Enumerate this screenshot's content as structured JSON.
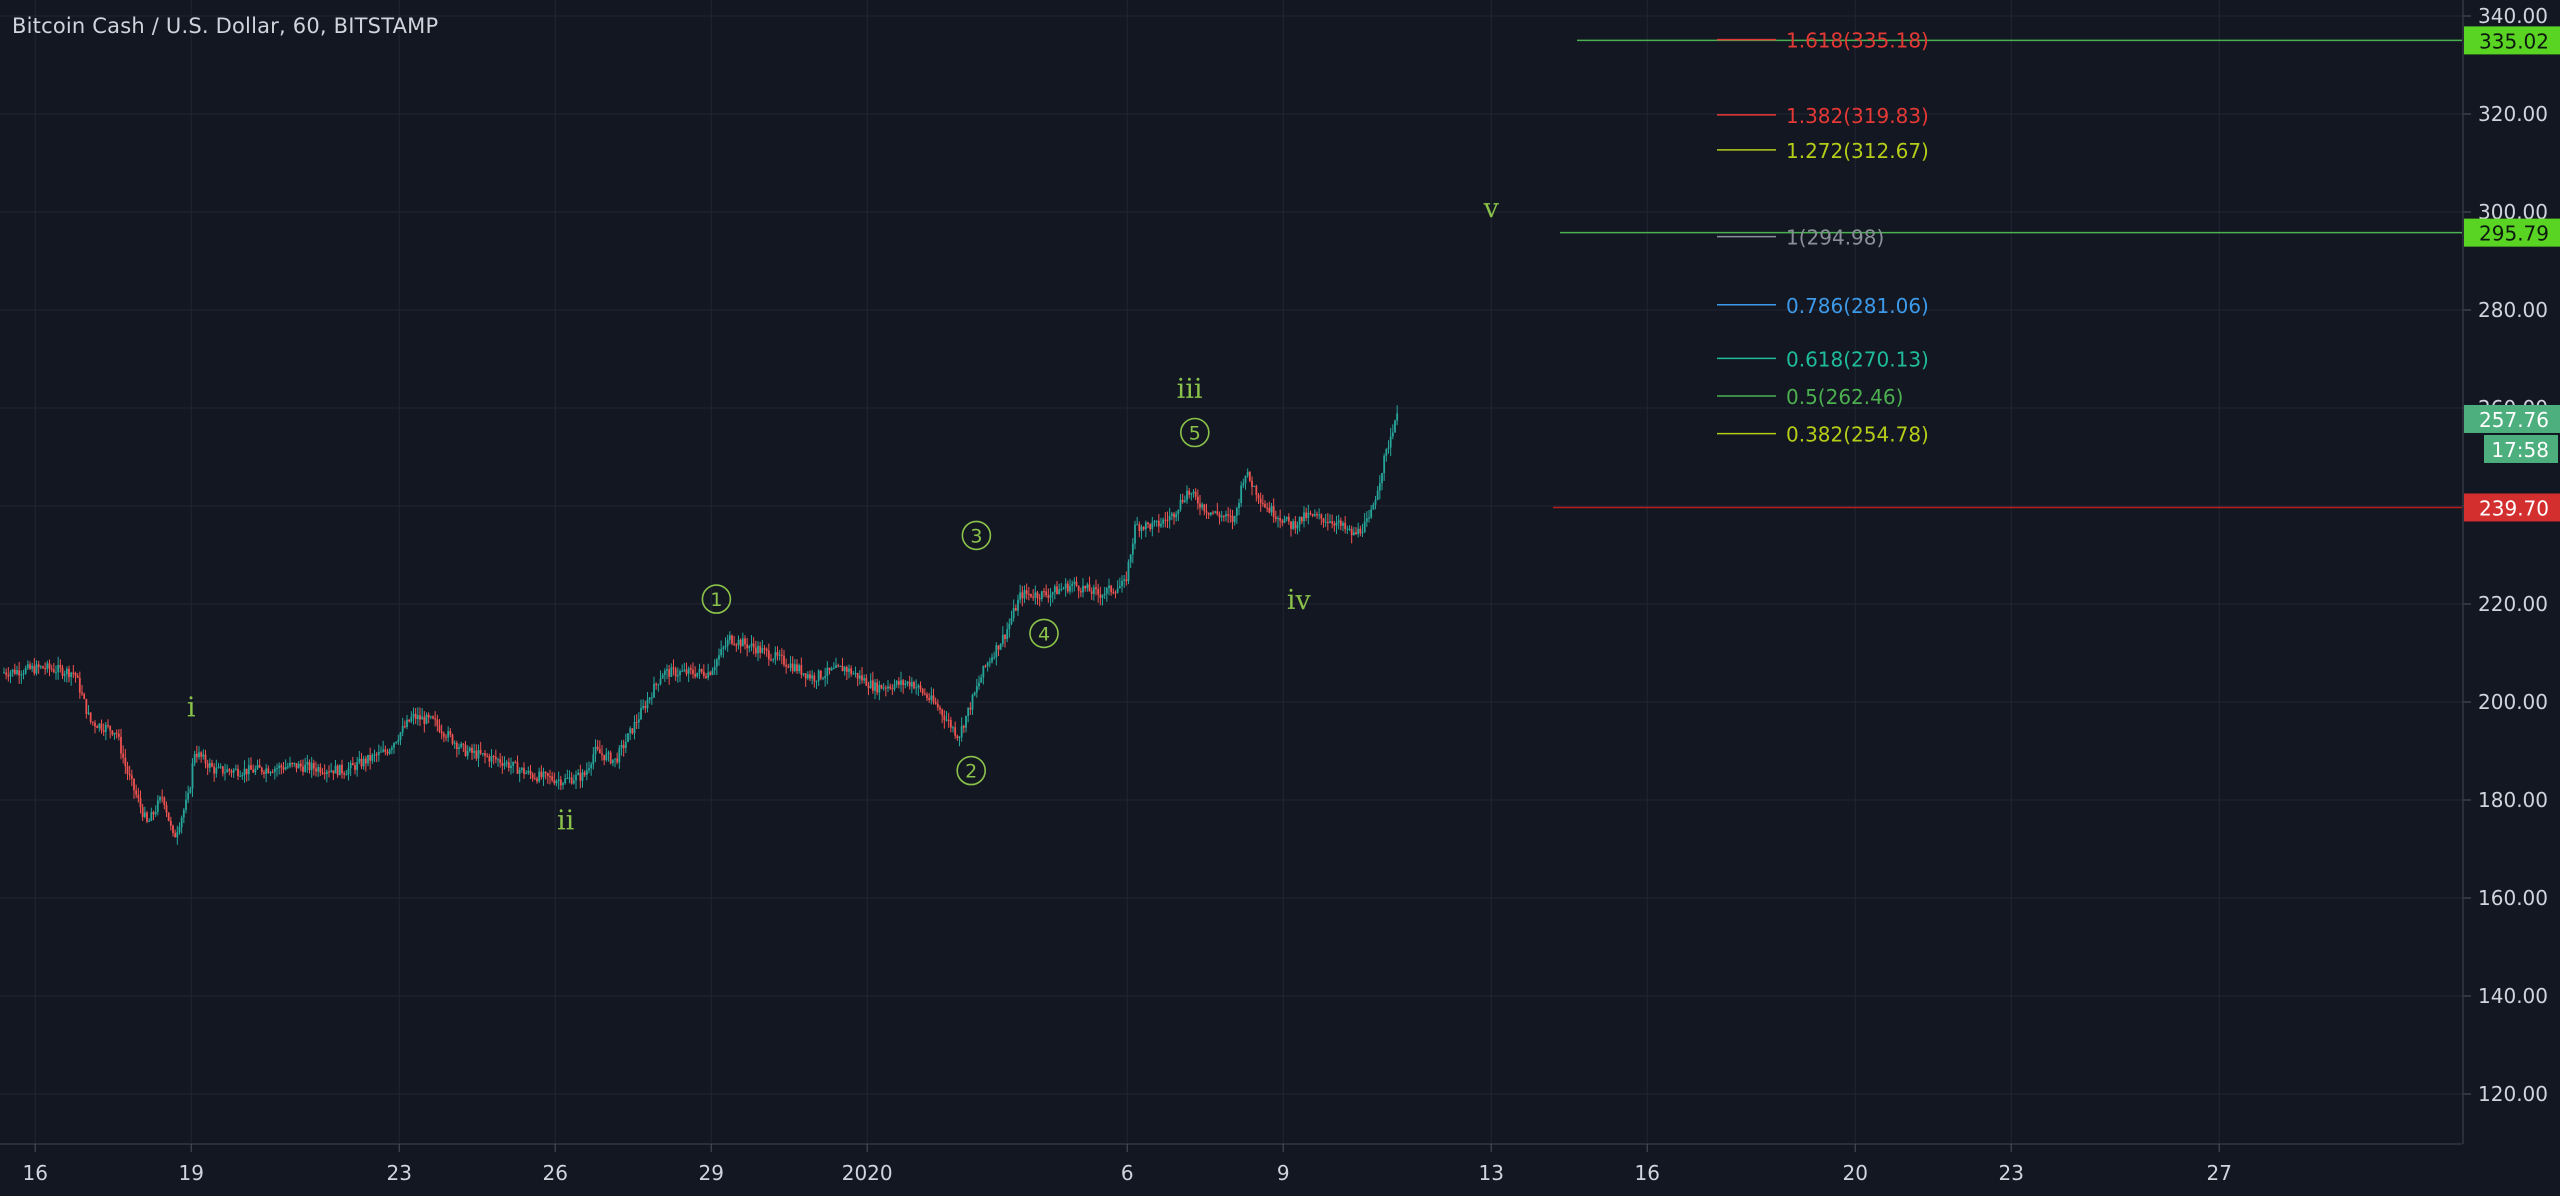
{
  "header": {
    "symbol_title": "Bitcoin Cash / U.S. Dollar, 60, BITSTAMP"
  },
  "colors": {
    "background": "#131722",
    "grid": "#222634",
    "axis_text": "#d1d4dc",
    "candle_up": "#26a69a",
    "candle_down": "#ef5350",
    "wave_label": "#8bc34a",
    "target_line": "#4caf50",
    "target_badge": "#59d423",
    "support_line": "#b71c1c",
    "support_badge": "#d32f2f",
    "current_badge": "#4caf7d"
  },
  "chart_data": {
    "type": "candlestick",
    "title": "Bitcoin Cash / U.S. Dollar, 60, BITSTAMP",
    "y_axis": {
      "range": [
        110,
        341
      ],
      "ticks": [
        120,
        140,
        160,
        180,
        200,
        220,
        240,
        260,
        280,
        300,
        320,
        340
      ],
      "tick_labels": [
        "120.00",
        "140.00",
        "160.00",
        "180.00",
        "200.00",
        "220.00",
        "240.00",
        "260.00",
        "280.00",
        "300.00",
        "320.00",
        "340.00"
      ]
    },
    "x_axis": {
      "range_days": [
        15.4,
        43.3
      ],
      "ticks": [
        {
          "day": 16,
          "label": "16"
        },
        {
          "day": 19,
          "label": "19"
        },
        {
          "day": 23,
          "label": "23"
        },
        {
          "day": 26,
          "label": "26"
        },
        {
          "day": 29,
          "label": "29"
        },
        {
          "day": 32,
          "label": "2020"
        },
        {
          "day": 37,
          "label": "6"
        },
        {
          "day": 40,
          "label": "9"
        },
        {
          "day": 44,
          "label": "13"
        },
        {
          "day": 47,
          "label": "16"
        },
        {
          "day": 51,
          "label": "20"
        },
        {
          "day": 54,
          "label": "23"
        },
        {
          "day": 58,
          "label": "27"
        }
      ]
    },
    "price_path": [
      [
        15.4,
        206
      ],
      [
        16.2,
        207
      ],
      [
        16.8,
        206
      ],
      [
        17.1,
        196
      ],
      [
        17.6,
        194
      ],
      [
        17.8,
        186
      ],
      [
        18.2,
        175
      ],
      [
        18.5,
        181
      ],
      [
        18.7,
        172
      ],
      [
        19.0,
        181
      ],
      [
        19.1,
        190
      ],
      [
        19.5,
        186
      ],
      [
        20.2,
        186
      ],
      [
        21.0,
        187
      ],
      [
        22.0,
        186
      ],
      [
        22.8,
        190
      ],
      [
        23.3,
        197
      ],
      [
        23.7,
        196
      ],
      [
        24.3,
        190
      ],
      [
        25.0,
        188
      ],
      [
        25.6,
        185
      ],
      [
        26.2,
        184
      ],
      [
        26.6,
        185
      ],
      [
        26.8,
        190
      ],
      [
        27.2,
        188
      ],
      [
        27.5,
        194
      ],
      [
        27.8,
        200
      ],
      [
        28.1,
        206
      ],
      [
        28.5,
        206
      ],
      [
        29.0,
        206
      ],
      [
        29.4,
        213
      ],
      [
        29.9,
        211
      ],
      [
        30.5,
        208
      ],
      [
        31.0,
        205
      ],
      [
        31.6,
        207
      ],
      [
        32.2,
        203
      ],
      [
        32.9,
        204
      ],
      [
        33.4,
        199
      ],
      [
        33.8,
        193
      ],
      [
        34.3,
        207
      ],
      [
        34.7,
        214
      ],
      [
        35.0,
        222
      ],
      [
        35.5,
        222
      ],
      [
        36.0,
        224
      ],
      [
        36.5,
        222
      ],
      [
        37.0,
        224
      ],
      [
        37.2,
        236
      ],
      [
        37.6,
        236
      ],
      [
        37.9,
        238
      ],
      [
        38.2,
        243
      ],
      [
        38.6,
        239
      ],
      [
        39.1,
        237
      ],
      [
        39.3,
        247
      ],
      [
        39.7,
        240
      ],
      [
        40.2,
        236
      ],
      [
        40.5,
        238
      ],
      [
        41.0,
        237
      ],
      [
        41.4,
        234
      ],
      [
        41.7,
        237
      ],
      [
        42.0,
        250
      ],
      [
        42.2,
        258
      ]
    ],
    "last_price": {
      "value": 257.76,
      "label": "257.76",
      "countdown": "17:58"
    },
    "fibonacci_levels": [
      {
        "ratio": "1.618",
        "price": 335.18,
        "label": "1.618(335.18)",
        "color": "#e53935"
      },
      {
        "ratio": "1.382",
        "price": 319.83,
        "label": "1.382(319.83)",
        "color": "#e53935"
      },
      {
        "ratio": "1.272",
        "price": 312.67,
        "label": "1.272(312.67)",
        "color": "#b5cc18"
      },
      {
        "ratio": "1",
        "price": 294.98,
        "label": "1(294.98)",
        "color": "#8b8f99"
      },
      {
        "ratio": "0.786",
        "price": 281.06,
        "label": "0.786(281.06)",
        "color": "#3d9ae8"
      },
      {
        "ratio": "0.618",
        "price": 270.13,
        "label": "0.618(270.13)",
        "color": "#1fbc9c"
      },
      {
        "ratio": "0.5",
        "price": 262.46,
        "label": "0.5(262.46)",
        "color": "#4caf50"
      },
      {
        "ratio": "0.382",
        "price": 254.78,
        "label": "0.382(254.78)",
        "color": "#b5cc18"
      }
    ],
    "horizontal_lines": [
      {
        "price": 335.02,
        "label": "335.02",
        "kind": "target"
      },
      {
        "price": 295.79,
        "label": "295.79",
        "kind": "target"
      },
      {
        "price": 239.7,
        "label": "239.70",
        "kind": "support"
      }
    ],
    "wave_labels": [
      {
        "text": "i",
        "day": 19.0,
        "price": 197,
        "style": "roman"
      },
      {
        "text": "ii",
        "day": 26.2,
        "price": 174,
        "style": "roman"
      },
      {
        "text": "iii",
        "day": 38.2,
        "price": 262,
        "style": "roman"
      },
      {
        "text": "iv",
        "day": 40.3,
        "price": 219,
        "style": "roman"
      },
      {
        "text": "v",
        "day": 44.0,
        "price": 299,
        "style": "roman"
      },
      {
        "text": "1",
        "day": 29.1,
        "price": 221,
        "style": "circled"
      },
      {
        "text": "2",
        "day": 34.0,
        "price": 186,
        "style": "circled"
      },
      {
        "text": "3",
        "day": 34.1,
        "price": 234,
        "style": "circled"
      },
      {
        "text": "4",
        "day": 35.4,
        "price": 214,
        "style": "circled"
      },
      {
        "text": "5",
        "day": 38.3,
        "price": 255,
        "style": "circled"
      }
    ]
  }
}
